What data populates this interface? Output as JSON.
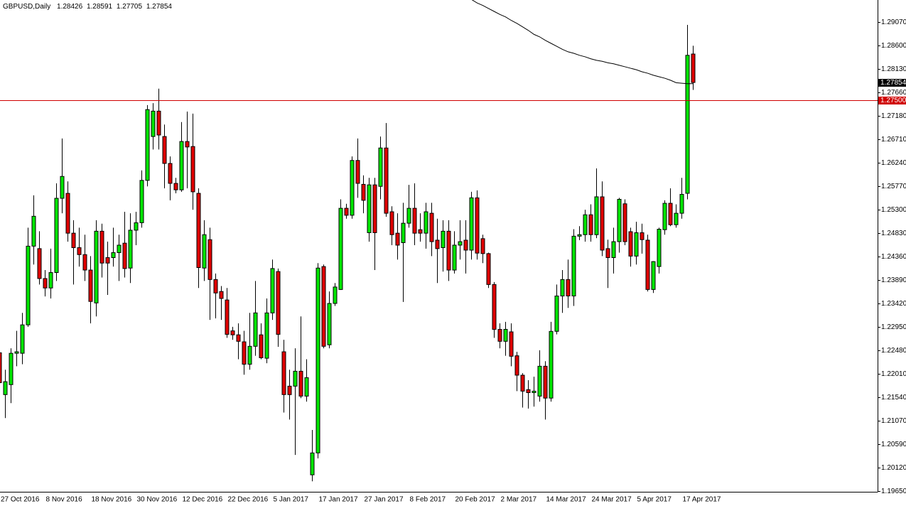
{
  "chart_data": {
    "type": "candlestick",
    "title": "GBPUSD,Daily",
    "categories": [
      "27 Oct 2016",
      null,
      null,
      null,
      null,
      null,
      null,
      null,
      "8 Nov 2016",
      null,
      null,
      null,
      null,
      null,
      null,
      null,
      "18 Nov 2016",
      null,
      null,
      null,
      null,
      null,
      null,
      null,
      "30 Nov 2016",
      null,
      null,
      null,
      null,
      null,
      null,
      null,
      "12 Dec 2016",
      null,
      null,
      null,
      null,
      null,
      null,
      null,
      "22 Dec 2016",
      null,
      null,
      null,
      null,
      null,
      null,
      null,
      "5 Jan 2017",
      null,
      null,
      null,
      null,
      null,
      null,
      null,
      "17 Jan 2017",
      null,
      null,
      null,
      null,
      null,
      null,
      null,
      "27 Jan 2017",
      null,
      null,
      null,
      null,
      null,
      null,
      null,
      "8 Feb 2017",
      null,
      null,
      null,
      null,
      null,
      null,
      null,
      "20 Feb 2017",
      null,
      null,
      null,
      null,
      null,
      null,
      null,
      "2 Mar 2017",
      null,
      null,
      null,
      null,
      null,
      null,
      null,
      "14 Mar 2017",
      null,
      null,
      null,
      null,
      null,
      null,
      null,
      "24 Mar 2017",
      null,
      null,
      null,
      null,
      null,
      null,
      null,
      "5 Apr 2017",
      null,
      null,
      null,
      null,
      null,
      null,
      null,
      "17 Apr 2017",
      null,
      null
    ],
    "open": [
      1.2243,
      1.2159,
      1.2179,
      1.2242,
      1.2242,
      1.2299,
      1.2457,
      1.2452,
      1.2392,
      1.2373,
      1.2404,
      1.2553,
      1.2563,
      1.2483,
      1.2454,
      1.244,
      1.2409,
      1.2343,
      1.2487,
      1.2434,
      1.2434,
      1.2444,
      1.2463,
      1.2413,
      1.2489,
      1.2504,
      1.2589,
      1.2677,
      1.2728,
      1.2677,
      1.2623,
      1.2583,
      1.257,
      1.2667,
      1.2657,
      1.2563,
      1.2413,
      1.247,
      1.239,
      1.2366,
      1.2349,
      1.2287,
      1.2279,
      1.2265,
      1.222,
      1.2256,
      1.2279,
      1.2232,
      1.2323,
      1.2406,
      1.2245,
      1.2176,
      1.2176,
      1.2206,
      1.2156,
      1.1998,
      1.2042,
      1.2416,
      1.2259,
      1.2342,
      1.237,
      1.2533,
      1.2519,
      1.2629,
      1.2581,
      1.2484,
      1.258,
      1.2577,
      1.2654,
      1.2526,
      1.2483,
      1.2464,
      1.2503,
      1.2533,
      1.249,
      1.2483,
      1.2523,
      1.2469,
      1.2454,
      1.2487,
      1.2409,
      1.2459,
      1.2469,
      1.2449,
      1.2554,
      1.2472,
      1.2442,
      1.238,
      1.229,
      1.2266,
      1.2285,
      1.2237,
      1.2198,
      1.2169,
      1.2163,
      1.2156,
      1.2216,
      1.2152,
      1.2286,
      1.2357,
      1.239,
      1.2357,
      1.2477,
      1.248,
      1.252,
      1.248,
      1.2556,
      1.2452,
      1.2434,
      1.2466,
      1.2542,
      1.2486,
      1.2437,
      1.2484,
      1.2469,
      1.237,
      1.2416,
      1.249,
      1.2543,
      1.25,
      1.2523,
      1.2563,
      1.28426
    ],
    "high": [
      1.2249,
      1.2209,
      1.2252,
      1.2287,
      1.2323,
      1.2494,
      1.2559,
      1.2487,
      1.2409,
      1.2452,
      1.2583,
      1.2673,
      1.2587,
      1.2509,
      1.2494,
      1.248,
      1.2437,
      1.2509,
      1.2502,
      1.2466,
      1.2494,
      1.248,
      1.2526,
      1.2523,
      1.2526,
      1.2609,
      1.274,
      1.2744,
      1.2773,
      1.2701,
      1.2637,
      1.2594,
      1.2706,
      1.2727,
      1.2723,
      1.2573,
      1.2509,
      1.2494,
      1.2402,
      1.2377,
      1.2373,
      1.2295,
      1.2302,
      1.2287,
      1.2323,
      1.2387,
      1.2302,
      1.2352,
      1.243,
      1.2412,
      1.2269,
      1.2209,
      1.2252,
      1.2316,
      1.223,
      1.2088,
      1.2423,
      1.242,
      1.2366,
      1.2383,
      1.2551,
      1.2542,
      1.2637,
      1.2673,
      1.2599,
      1.2594,
      1.2594,
      1.2677,
      1.2704,
      1.2537,
      1.2523,
      1.2544,
      1.258,
      1.2583,
      1.2523,
      1.2544,
      1.2544,
      1.2512,
      1.2509,
      1.2509,
      1.2487,
      1.2509,
      1.2509,
      1.2566,
      1.2569,
      1.248,
      1.2444,
      1.2385,
      1.2302,
      1.2305,
      1.2302,
      1.2245,
      1.2202,
      1.2188,
      1.2195,
      1.2248,
      1.2226,
      1.2305,
      1.238,
      1.2409,
      1.243,
      1.2491,
      1.2497,
      1.253,
      1.2541,
      1.2613,
      1.2587,
      1.247,
      1.2494,
      1.2554,
      1.2551,
      1.2494,
      1.2506,
      1.2502,
      1.248,
      1.2427,
      1.2494,
      1.2549,
      1.2573,
      1.2541,
      1.2594,
      1.2901,
      1.28591
    ],
    "low": [
      1.2152,
      1.2112,
      1.2142,
      1.2216,
      1.222,
      1.2295,
      1.242,
      1.238,
      1.2356,
      1.2352,
      1.2387,
      1.2523,
      1.2466,
      1.238,
      1.2416,
      1.2387,
      1.2302,
      1.2316,
      1.2394,
      1.2359,
      1.2416,
      1.2387,
      1.2394,
      1.2383,
      1.2459,
      1.2494,
      1.2577,
      1.2651,
      1.2651,
      1.2573,
      1.2549,
      1.2563,
      1.2566,
      1.2573,
      1.253,
      1.2373,
      1.2387,
      1.2309,
      1.2312,
      1.2309,
      1.2273,
      1.2269,
      1.223,
      1.2199,
      1.2209,
      1.2237,
      1.223,
      1.2222,
      1.2309,
      1.2255,
      1.2123,
      1.2109,
      1.2038,
      1.2152,
      1.2145,
      1.1985,
      1.2031,
      1.2252,
      1.2252,
      1.2337,
      1.2369,
      1.2512,
      1.2512,
      1.2554,
      1.2523,
      1.2466,
      1.2409,
      1.2551,
      1.2516,
      1.2459,
      1.243,
      1.2345,
      1.2494,
      1.2459,
      1.2466,
      1.2452,
      1.2437,
      1.2383,
      1.2406,
      1.2387,
      1.2402,
      1.243,
      1.2402,
      1.243,
      1.243,
      1.2423,
      1.2373,
      1.2273,
      1.2252,
      1.2237,
      1.2216,
      1.2166,
      1.2133,
      1.2131,
      1.2135,
      1.2145,
      1.2109,
      1.2145,
      1.228,
      1.2323,
      1.2333,
      1.2337,
      1.2469,
      1.2466,
      1.2466,
      1.2473,
      1.2437,
      1.2373,
      1.2402,
      1.2444,
      1.2459,
      1.2416,
      1.242,
      1.2442,
      1.2366,
      1.2363,
      1.2402,
      1.248,
      1.2497,
      1.2494,
      1.2512,
      1.2551,
      1.27705
    ],
    "close": [
      1.2183,
      1.2185,
      1.2242,
      1.2245,
      1.2299,
      1.2457,
      1.2517,
      1.2392,
      1.2373,
      1.2404,
      1.2553,
      1.2597,
      1.2483,
      1.2454,
      1.244,
      1.2409,
      1.2346,
      1.2487,
      1.2423,
      1.2423,
      1.2444,
      1.2459,
      1.2412,
      1.2489,
      1.2504,
      1.2589,
      1.2731,
      1.2728,
      1.268,
      1.2623,
      1.2583,
      1.257,
      1.2667,
      1.2656,
      1.2566,
      1.2414,
      1.248,
      1.239,
      1.2363,
      1.2352,
      1.228,
      1.2279,
      1.2266,
      1.222,
      1.2256,
      1.2323,
      1.2233,
      1.2323,
      1.2412,
      1.228,
      1.2159,
      1.2159,
      1.2206,
      1.2156,
      1.2193,
      1.2042,
      1.2413,
      1.2256,
      1.2342,
      1.2375,
      1.2533,
      1.2519,
      1.2629,
      1.2583,
      1.2549,
      1.258,
      1.2484,
      1.2654,
      1.2523,
      1.248,
      1.2459,
      1.2503,
      1.2533,
      1.2483,
      1.2483,
      1.2526,
      1.2466,
      1.2452,
      1.2487,
      1.2409,
      1.2459,
      1.2466,
      1.2449,
      1.2554,
      1.2443,
      1.2442,
      1.238,
      1.229,
      1.2266,
      1.229,
      1.2236,
      1.2198,
      1.2166,
      1.2163,
      1.2166,
      1.2216,
      1.2152,
      1.2286,
      1.2357,
      1.239,
      1.2357,
      1.2477,
      1.248,
      1.252,
      1.248,
      1.2556,
      1.2449,
      1.2434,
      1.2466,
      1.2551,
      1.2466,
      1.2437,
      1.2484,
      1.247,
      1.237,
      1.2426,
      1.2491,
      1.2543,
      1.25,
      1.2523,
      1.2561,
      1.284,
      1.27854
    ],
    "ma": [
      null,
      null,
      null,
      null,
      null,
      null,
      null,
      null,
      null,
      null,
      null,
      null,
      null,
      null,
      null,
      null,
      null,
      null,
      null,
      null,
      null,
      null,
      null,
      null,
      null,
      null,
      null,
      null,
      null,
      null,
      null,
      null,
      null,
      null,
      null,
      null,
      null,
      null,
      null,
      null,
      null,
      null,
      null,
      null,
      null,
      null,
      null,
      null,
      null,
      null,
      null,
      null,
      null,
      null,
      null,
      null,
      null,
      null,
      null,
      null,
      null,
      null,
      null,
      null,
      null,
      null,
      null,
      null,
      null,
      null,
      null,
      null,
      null,
      null,
      null,
      null,
      null,
      null,
      null,
      null,
      null,
      null,
      null,
      1.2952,
      1.2945,
      1.294,
      1.2934,
      1.2928,
      1.2922,
      1.2917,
      1.291,
      1.2904,
      1.2897,
      1.289,
      1.2882,
      1.2877,
      1.287,
      1.2864,
      1.2858,
      1.2852,
      1.2847,
      1.2844,
      1.284,
      1.2837,
      1.2833,
      1.283,
      1.2828,
      1.2825,
      1.2823,
      1.282,
      1.2817,
      1.2814,
      1.2811,
      1.2807,
      1.2804,
      1.28,
      1.2797,
      1.2794,
      1.279,
      1.2785,
      1.2784,
      1.2783,
      1.2783
    ],
    "up_color": "#00e600",
    "down_color": "#e00000",
    "ma_color": "#000000",
    "level": {
      "value": 1.275,
      "label": "1.27500"
    },
    "level_color": "#d00000",
    "ylim": [
      1.1964,
      1.2951
    ],
    "yticks": [
      {
        "value": 1.1965,
        "label": "1.19650"
      },
      {
        "value": 1.2012,
        "label": "1.20120"
      },
      {
        "value": 1.2059,
        "label": "1.20590"
      },
      {
        "value": 1.2107,
        "label": "1.21070"
      },
      {
        "value": 1.2154,
        "label": "1.21540"
      },
      {
        "value": 1.2201,
        "label": "1.22010"
      },
      {
        "value": 1.2248,
        "label": "1.22480"
      },
      {
        "value": 1.2295,
        "label": "1.22950"
      },
      {
        "value": 1.2342,
        "label": "1.23420"
      },
      {
        "value": 1.2389,
        "label": "1.23890"
      },
      {
        "value": 1.2436,
        "label": "1.24360"
      },
      {
        "value": 1.2483,
        "label": "1.24830"
      },
      {
        "value": 1.253,
        "label": "1.25300"
      },
      {
        "value": 1.2577,
        "label": "1.25770"
      },
      {
        "value": 1.2624,
        "label": "1.26240"
      },
      {
        "value": 1.2671,
        "label": "1.26710"
      },
      {
        "value": 1.2718,
        "label": "1.27180"
      },
      {
        "value": 1.2766,
        "label": "1.27660"
      },
      {
        "value": 1.2813,
        "label": "1.28130"
      },
      {
        "value": 1.286,
        "label": "1.28600"
      },
      {
        "value": 1.2907,
        "label": "1.29070"
      }
    ],
    "grid": false
  }
}
